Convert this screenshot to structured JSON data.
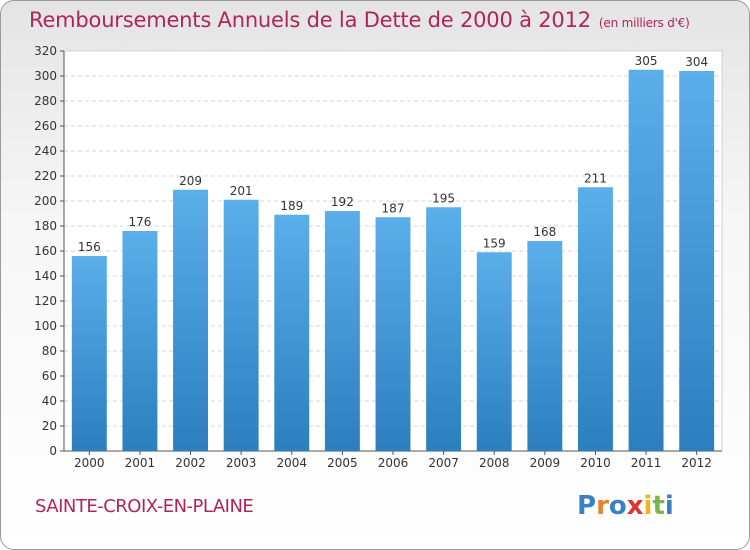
{
  "title": "Remboursements Annuels de la Dette de 2000 à 2012",
  "subtitle": "(en milliers d'€)",
  "place": "SAINTE-CROIX-EN-PLAINE",
  "logo": {
    "letters": [
      "P",
      "r",
      "o",
      "x",
      "i",
      "t",
      "i"
    ],
    "colors": [
      "#3b7fc4",
      "#e8842a",
      "#3b7fc4",
      "#d8362e",
      "#f0b324",
      "#7ab648",
      "#3b7fc4"
    ]
  },
  "colors": {
    "bar_top": "#5aaeea",
    "bar_bottom": "#2c7fbf",
    "text": "#b0245c"
  },
  "chart_data": {
    "type": "bar",
    "categories": [
      "2000",
      "2001",
      "2002",
      "2003",
      "2004",
      "2005",
      "2006",
      "2007",
      "2008",
      "2009",
      "2010",
      "2011",
      "2012"
    ],
    "values": [
      156,
      176,
      209,
      201,
      189,
      192,
      187,
      195,
      159,
      168,
      211,
      305,
      304
    ],
    "ylim": [
      0,
      320
    ],
    "yticks": [
      0,
      20,
      40,
      60,
      80,
      100,
      120,
      140,
      160,
      180,
      200,
      220,
      240,
      260,
      280,
      300,
      320
    ],
    "grid": true,
    "data_labels": true
  }
}
